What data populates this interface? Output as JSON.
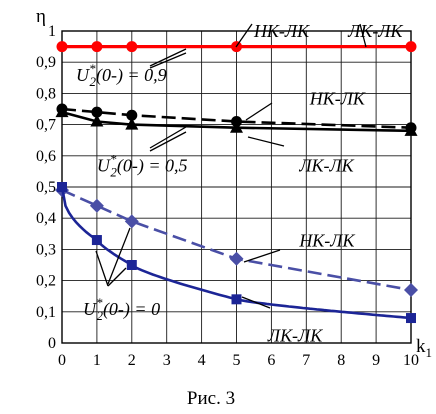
{
  "chart_data": {
    "type": "line",
    "xlabel": "k1",
    "ylabel": "η",
    "caption": "Рис. 3",
    "xlim": [
      0,
      10
    ],
    "ylim": [
      0,
      1
    ],
    "x_ticks": [
      "0",
      "1",
      "2",
      "3",
      "4",
      "5",
      "6",
      "7",
      "8",
      "9",
      "10"
    ],
    "y_ticks": [
      "0",
      "0,1",
      "0,2",
      "0,3",
      "0,4",
      "0,5",
      "0,6",
      "0,7",
      "0,8",
      "0,9",
      "1"
    ],
    "grid": true,
    "series": [
      {
        "group": "0,9",
        "style": "solid",
        "marker": "circle",
        "color": "#ff0000",
        "x": [
          0,
          1,
          2,
          5,
          10
        ],
        "values": [
          0.95,
          0.95,
          0.95,
          0.95,
          0.95
        ]
      },
      {
        "group": "0,5",
        "style": "dashed",
        "marker": "circle",
        "color": "#000000",
        "x": [
          0,
          1,
          2,
          5,
          10
        ],
        "values": [
          0.75,
          0.74,
          0.73,
          0.71,
          0.69
        ]
      },
      {
        "group": "0,5",
        "style": "solid",
        "marker": "triangle",
        "color": "#000000",
        "x": [
          0,
          1,
          2,
          5,
          10
        ],
        "values": [
          0.74,
          0.71,
          0.7,
          0.69,
          0.68
        ]
      },
      {
        "group": "0",
        "style": "dashed",
        "marker": "diamond",
        "color": "#4a4fa6",
        "x": [
          0,
          1,
          2,
          5,
          10
        ],
        "values": [
          0.49,
          0.44,
          0.39,
          0.27,
          0.17
        ]
      },
      {
        "group": "0",
        "style": "solid",
        "marker": "square",
        "color": "#1c2596",
        "x": [
          0,
          1,
          2,
          5,
          10
        ],
        "values": [
          0.5,
          0.33,
          0.25,
          0.14,
          0.08
        ]
      }
    ],
    "annotations": [
      {
        "id": "ann_hk_lk_top",
        "text": "НК-ЛК",
        "at": [
          5.5,
          0.98
        ]
      },
      {
        "id": "ann_lk_lk_top",
        "text": "ЛК-ЛК",
        "at": [
          8.2,
          0.98
        ]
      },
      {
        "id": "ann_u09_base",
        "text": "U",
        "sup": "*",
        "sub": "2",
        "rest": "(0-) = 0,9",
        "at": [
          0.4,
          0.84
        ]
      },
      {
        "id": "ann_hk_lk_mid",
        "text": "НК-ЛК",
        "at": [
          7.1,
          0.765
        ]
      },
      {
        "id": "ann_lk_lk_mid",
        "text": "ЛК-ЛК",
        "at": [
          6.8,
          0.55
        ]
      },
      {
        "id": "ann_u05_base",
        "text": "U",
        "sup": "*",
        "sub": "2",
        "rest": "(0-) = 0,5",
        "at": [
          1.0,
          0.55
        ]
      },
      {
        "id": "ann_hk_lk_low",
        "text": "НК-ЛК",
        "at": [
          6.8,
          0.31
        ]
      },
      {
        "id": "ann_u0_base",
        "text": "U",
        "sup": "*",
        "sub": "2",
        "rest": "(0-) = 0",
        "at": [
          0.6,
          0.09
        ]
      },
      {
        "id": "ann_lk_lk_low",
        "text": "ЛК-ЛК",
        "at": [
          5.9,
          0.005
        ]
      }
    ]
  }
}
